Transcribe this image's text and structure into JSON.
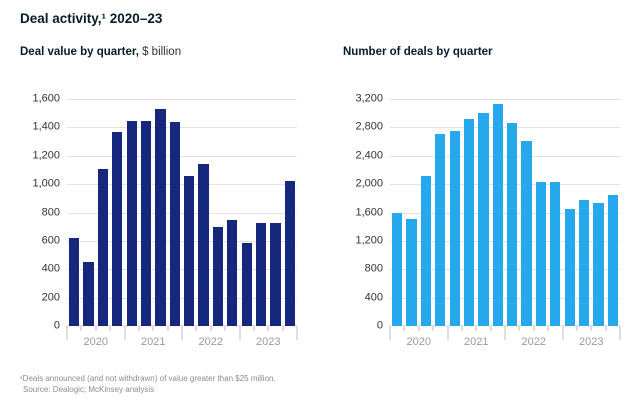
{
  "title": "Deal activity,¹ 2020–23",
  "footnote": {
    "line1": "¹Deals announced (and not withdrawn) of value greater than $25 million.",
    "line2": "Source: Dealogic; McKinsey analysis"
  },
  "colors": {
    "navy": "#15287D",
    "light_blue": "#25A9EC",
    "gridline": "#E3E3E3",
    "tick": "#BDBDBD",
    "year_label": "#9B9B9B",
    "y_label": "#333333",
    "title_text": "#051C2C",
    "footnote_text": "#8C8C8C"
  },
  "chart_data": [
    {
      "type": "bar",
      "title_bold": "Deal value by quarter,",
      "title_regular": " $ billion",
      "categories": [
        "2020 Q1",
        "2020 Q2",
        "2020 Q3",
        "2020 Q4",
        "2021 Q1",
        "2021 Q2",
        "2021 Q3",
        "2021 Q4",
        "2022 Q1",
        "2022 Q2",
        "2022 Q3",
        "2022 Q4",
        "2023 Q1",
        "2023 Q2",
        "2023 Q3",
        "2023 Q4"
      ],
      "year_groups": [
        "2020",
        "2021",
        "2022",
        "2023"
      ],
      "values": [
        620,
        450,
        1105,
        1365,
        1445,
        1445,
        1530,
        1440,
        1060,
        1145,
        700,
        750,
        585,
        725,
        725,
        1025
      ],
      "ylim": [
        0,
        1600
      ],
      "ytick_step": 200,
      "grid": true,
      "bar_color": "#15287D"
    },
    {
      "type": "bar",
      "title_bold": "Number of deals by quarter",
      "title_regular": "",
      "categories": [
        "2020 Q1",
        "2020 Q2",
        "2020 Q3",
        "2020 Q4",
        "2021 Q1",
        "2021 Q2",
        "2021 Q3",
        "2021 Q4",
        "2022 Q1",
        "2022 Q2",
        "2022 Q3",
        "2022 Q4",
        "2023 Q1",
        "2023 Q2",
        "2023 Q3",
        "2023 Q4"
      ],
      "year_groups": [
        "2020",
        "2021",
        "2022",
        "2023"
      ],
      "values": [
        1600,
        1505,
        2115,
        2700,
        2750,
        2915,
        3005,
        3135,
        2855,
        2610,
        2030,
        2035,
        1650,
        1775,
        1730,
        1850
      ],
      "ylim": [
        0,
        3200
      ],
      "ytick_step": 400,
      "grid": true,
      "bar_color": "#25A9EC"
    }
  ]
}
